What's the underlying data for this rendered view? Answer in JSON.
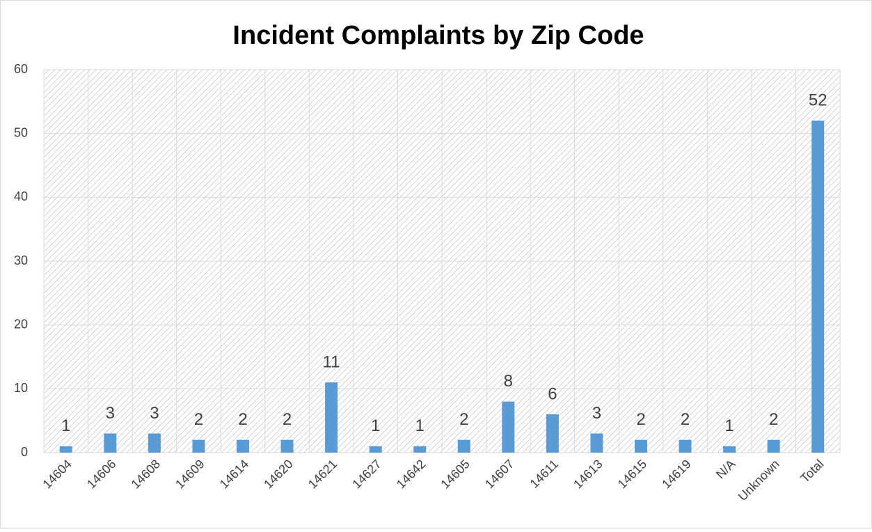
{
  "chart_data": {
    "type": "bar",
    "title": "Incident Complaints by Zip Code",
    "categories": [
      "14604",
      "14606",
      "14608",
      "14609",
      "14614",
      "14620",
      "14621",
      "14627",
      "14642",
      "14605",
      "14607",
      "14611",
      "14613",
      "14615",
      "14619",
      "N/A",
      "Unknown",
      "Total"
    ],
    "values": [
      1,
      3,
      3,
      2,
      2,
      2,
      11,
      1,
      1,
      2,
      8,
      6,
      3,
      2,
      2,
      1,
      2,
      52
    ],
    "color": "#5b9bd5",
    "ylim": [
      0,
      60
    ],
    "yticks": [
      0,
      10,
      20,
      30,
      40,
      50,
      60
    ],
    "grid": true
  }
}
